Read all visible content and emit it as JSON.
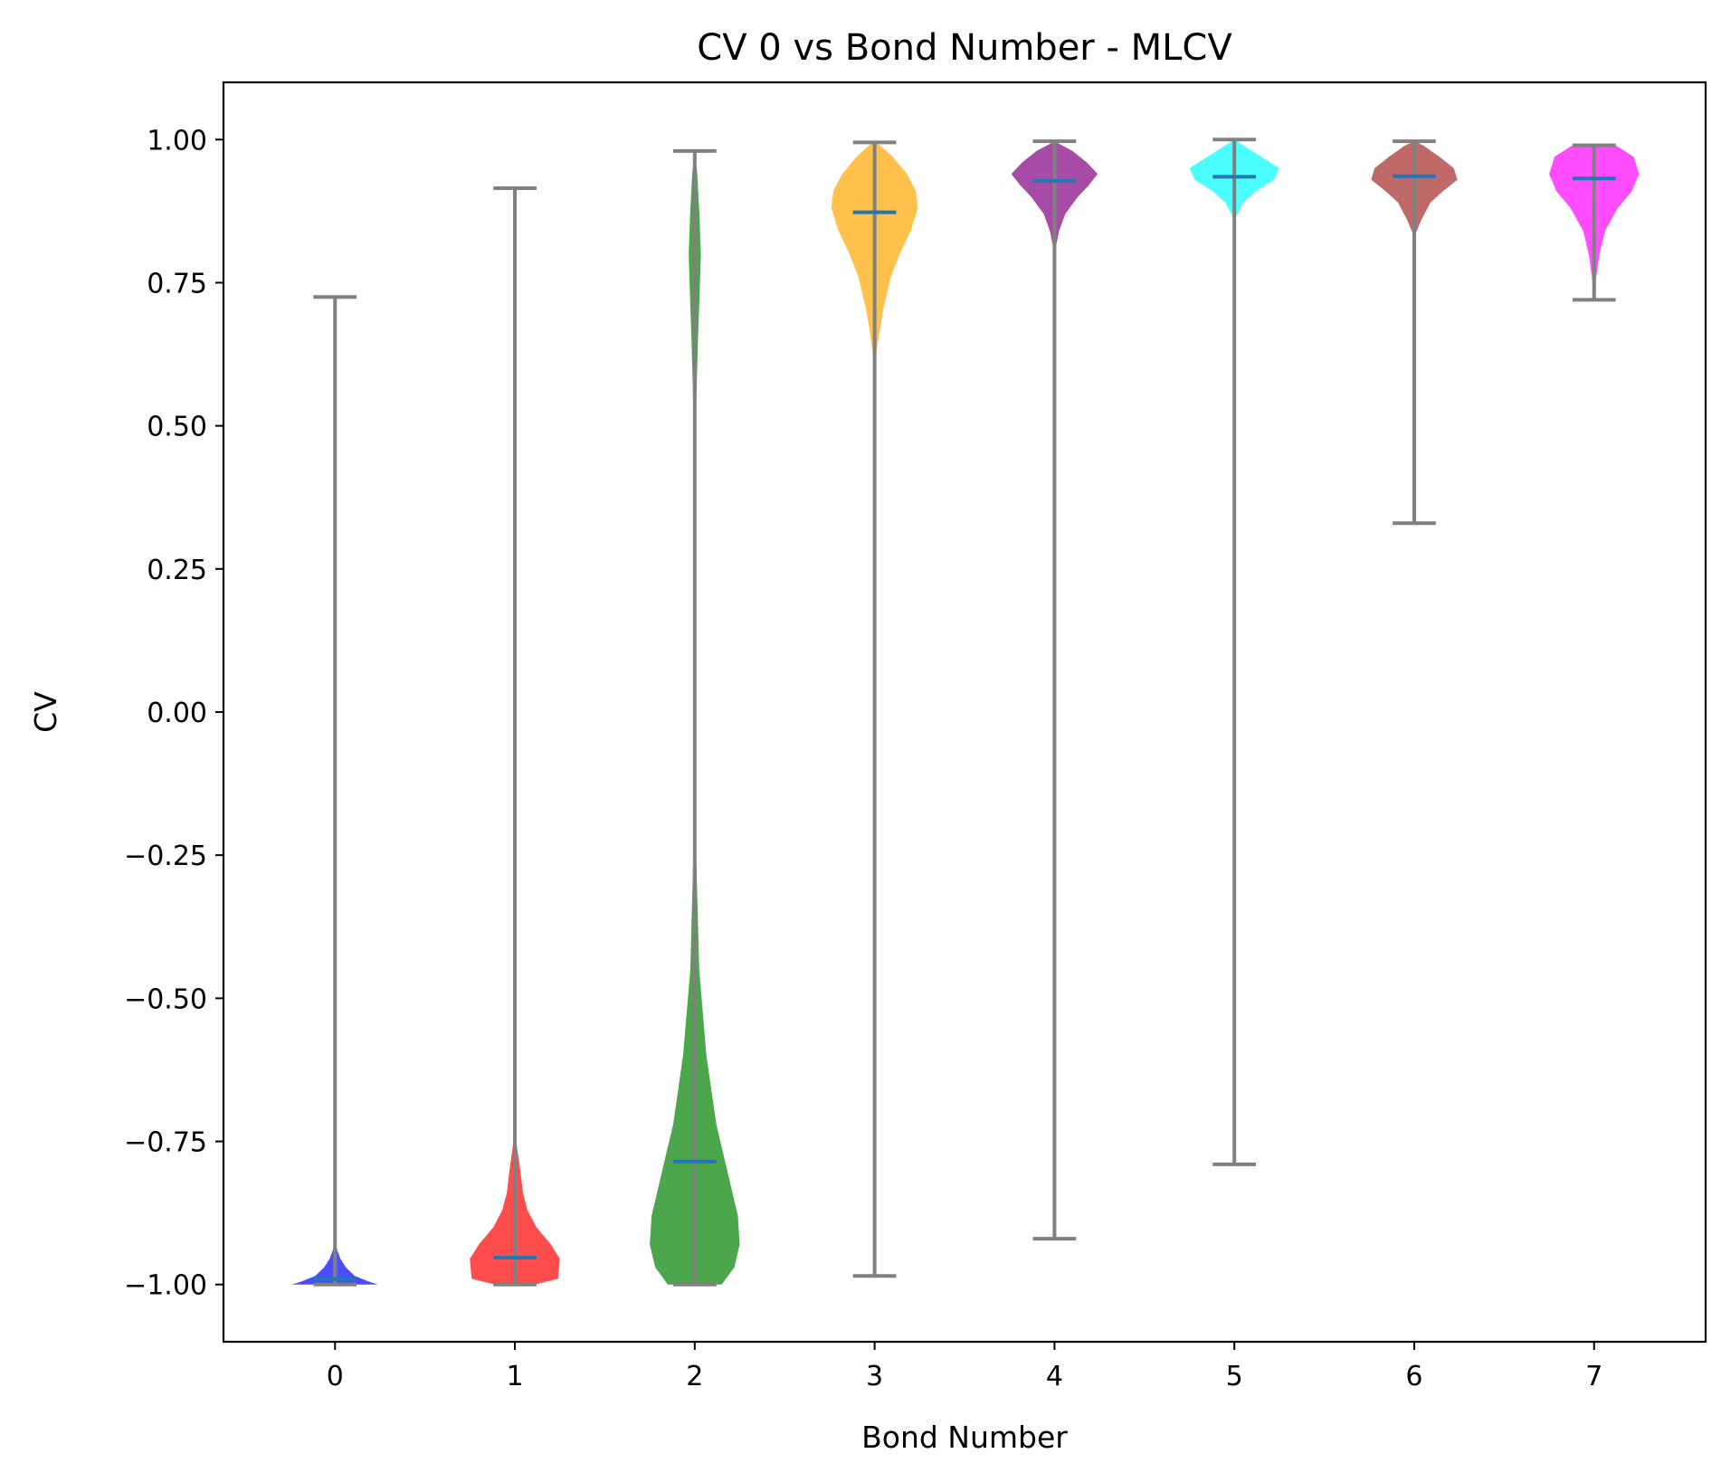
{
  "chart_data": {
    "type": "violin",
    "title": "CV 0 vs Bond Number - MLCV",
    "xlabel": "Bond Number",
    "ylabel": "CV",
    "xlim": [
      -0.62,
      7.62
    ],
    "ylim": [
      -1.1,
      1.1
    ],
    "x_ticks": [
      "0",
      "1",
      "2",
      "3",
      "4",
      "5",
      "6",
      "7"
    ],
    "y_ticks": [
      {
        "value": 1.0,
        "label": "1.00"
      },
      {
        "value": 0.75,
        "label": "0.75"
      },
      {
        "value": 0.5,
        "label": "0.50"
      },
      {
        "value": 0.25,
        "label": "0.25"
      },
      {
        "value": 0.0,
        "label": "0.00"
      },
      {
        "value": -0.25,
        "label": "−0.25"
      },
      {
        "value": -0.5,
        "label": "−0.50"
      },
      {
        "value": -0.75,
        "label": "−0.75"
      },
      {
        "value": -1.0,
        "label": "−1.00"
      }
    ],
    "grid": false,
    "whisker_color": "#808080",
    "median_color": "#1f77b4",
    "violins": [
      {
        "x": 0,
        "color": "#0000ff",
        "min": -1.0,
        "max": 0.725,
        "median": -0.99,
        "profile": [
          [
            -1.0,
            0.24
          ],
          [
            -0.995,
            0.19
          ],
          [
            -0.985,
            0.11
          ],
          [
            -0.97,
            0.06
          ],
          [
            -0.955,
            0.03
          ],
          [
            -0.94,
            0.012
          ],
          [
            -0.92,
            0.0
          ]
        ]
      },
      {
        "x": 1,
        "color": "#ff0000",
        "min": -1.0,
        "max": 0.915,
        "median": -0.953,
        "profile": [
          [
            -1.0,
            0.11
          ],
          [
            -0.99,
            0.24
          ],
          [
            -0.975,
            0.245
          ],
          [
            -0.955,
            0.25
          ],
          [
            -0.93,
            0.2
          ],
          [
            -0.9,
            0.12
          ],
          [
            -0.87,
            0.07
          ],
          [
            -0.84,
            0.045
          ],
          [
            -0.8,
            0.03
          ],
          [
            -0.76,
            0.012
          ],
          [
            -0.73,
            0.0
          ]
        ]
      },
      {
        "x": 2,
        "color": "#008000",
        "min": -1.0,
        "max": 0.98,
        "median": -0.785,
        "profile": [
          [
            -1.0,
            0.15
          ],
          [
            -0.97,
            0.22
          ],
          [
            -0.93,
            0.25
          ],
          [
            -0.88,
            0.24
          ],
          [
            -0.8,
            0.18
          ],
          [
            -0.72,
            0.12
          ],
          [
            -0.6,
            0.065
          ],
          [
            -0.45,
            0.025
          ],
          [
            -0.25,
            0.008
          ],
          [
            0.0,
            0.004
          ],
          [
            0.3,
            0.006
          ],
          [
            0.55,
            0.009
          ],
          [
            0.65,
            0.018
          ],
          [
            0.72,
            0.026
          ],
          [
            0.8,
            0.034
          ],
          [
            0.87,
            0.026
          ],
          [
            0.94,
            0.014
          ],
          [
            0.98,
            0.0
          ]
        ]
      },
      {
        "x": 3,
        "color": "#ffa500",
        "min": -0.985,
        "max": 0.995,
        "median": 0.873,
        "profile": [
          [
            0.6,
            0.0
          ],
          [
            0.64,
            0.015
          ],
          [
            0.7,
            0.045
          ],
          [
            0.76,
            0.09
          ],
          [
            0.8,
            0.14
          ],
          [
            0.84,
            0.2
          ],
          [
            0.88,
            0.24
          ],
          [
            0.91,
            0.23
          ],
          [
            0.94,
            0.18
          ],
          [
            0.97,
            0.1
          ],
          [
            0.99,
            0.03
          ],
          [
            0.995,
            0.0
          ]
        ]
      },
      {
        "x": 4,
        "color": "#800080",
        "min": -0.92,
        "max": 0.997,
        "median": 0.928,
        "profile": [
          [
            0.8,
            0.0
          ],
          [
            0.84,
            0.025
          ],
          [
            0.87,
            0.06
          ],
          [
            0.9,
            0.13
          ],
          [
            0.92,
            0.19
          ],
          [
            0.94,
            0.24
          ],
          [
            0.96,
            0.18
          ],
          [
            0.98,
            0.1
          ],
          [
            0.997,
            0.0
          ]
        ]
      },
      {
        "x": 5,
        "color": "#00ffff",
        "min": -0.79,
        "max": 1.0,
        "median": 0.935,
        "profile": [
          [
            0.86,
            0.0
          ],
          [
            0.89,
            0.05
          ],
          [
            0.91,
            0.12
          ],
          [
            0.93,
            0.22
          ],
          [
            0.95,
            0.25
          ],
          [
            0.97,
            0.15
          ],
          [
            0.99,
            0.05
          ],
          [
            1.0,
            0.0
          ]
        ]
      },
      {
        "x": 6,
        "color": "#a52a2a",
        "min": 0.33,
        "max": 0.997,
        "median": 0.936,
        "profile": [
          [
            0.83,
            0.0
          ],
          [
            0.86,
            0.04
          ],
          [
            0.89,
            0.09
          ],
          [
            0.91,
            0.16
          ],
          [
            0.93,
            0.24
          ],
          [
            0.95,
            0.22
          ],
          [
            0.97,
            0.14
          ],
          [
            0.99,
            0.05
          ],
          [
            0.997,
            0.0
          ]
        ]
      },
      {
        "x": 7,
        "color": "#ff00ff",
        "min": 0.72,
        "max": 0.99,
        "median": 0.932,
        "profile": [
          [
            0.72,
            0.0
          ],
          [
            0.76,
            0.012
          ],
          [
            0.8,
            0.03
          ],
          [
            0.84,
            0.06
          ],
          [
            0.88,
            0.13
          ],
          [
            0.91,
            0.21
          ],
          [
            0.94,
            0.25
          ],
          [
            0.97,
            0.22
          ],
          [
            0.99,
            0.12
          ]
        ]
      }
    ]
  }
}
